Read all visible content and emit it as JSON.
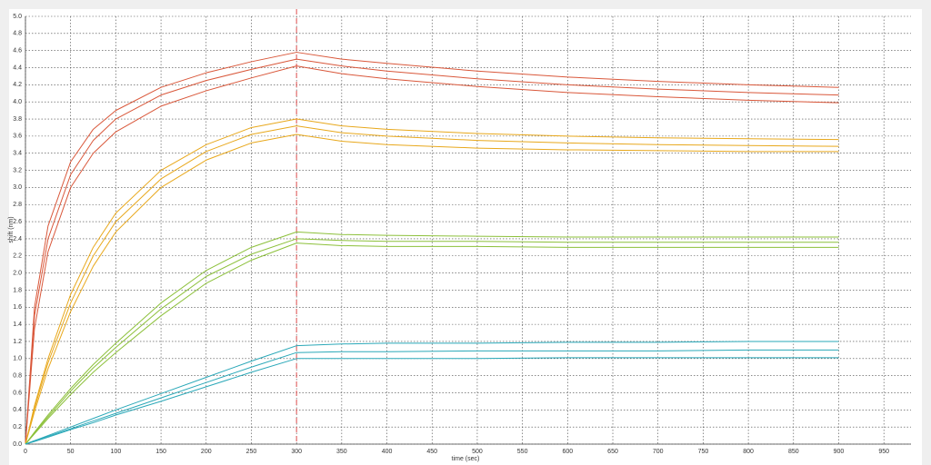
{
  "chart_data": {
    "type": "line",
    "x_label": "time (sec)",
    "y_label": "shift (nm)",
    "x": [
      0,
      10,
      25,
      50,
      75,
      100,
      150,
      200,
      250,
      300,
      350,
      400,
      500,
      600,
      700,
      800,
      900
    ],
    "series": [
      {
        "color": "#d9573a",
        "values": [
          0,
          1.6,
          2.55,
          3.3,
          3.68,
          3.9,
          4.17,
          4.34,
          4.47,
          4.58,
          4.5,
          4.45,
          4.36,
          4.29,
          4.24,
          4.2,
          4.17
        ]
      },
      {
        "color": "#d9573a",
        "values": [
          0,
          1.5,
          2.4,
          3.15,
          3.55,
          3.8,
          4.08,
          4.25,
          4.38,
          4.5,
          4.42,
          4.36,
          4.27,
          4.2,
          4.15,
          4.11,
          4.08
        ]
      },
      {
        "color": "#d9573a",
        "values": [
          0,
          1.35,
          2.25,
          3.0,
          3.4,
          3.65,
          3.95,
          4.13,
          4.28,
          4.42,
          4.33,
          4.27,
          4.18,
          4.11,
          4.06,
          4.02,
          3.99
        ]
      },
      {
        "color": "#e8a81c",
        "values": [
          0,
          0.45,
          1.0,
          1.75,
          2.3,
          2.7,
          3.2,
          3.5,
          3.7,
          3.8,
          3.72,
          3.68,
          3.63,
          3.6,
          3.58,
          3.57,
          3.56
        ]
      },
      {
        "color": "#e8a81c",
        "values": [
          0,
          0.42,
          0.95,
          1.65,
          2.2,
          2.6,
          3.1,
          3.42,
          3.62,
          3.72,
          3.64,
          3.6,
          3.55,
          3.52,
          3.5,
          3.49,
          3.48
        ]
      },
      {
        "color": "#e8a81c",
        "values": [
          0,
          0.38,
          0.88,
          1.55,
          2.08,
          2.48,
          3.0,
          3.32,
          3.52,
          3.62,
          3.54,
          3.5,
          3.46,
          3.44,
          3.43,
          3.42,
          3.42
        ]
      },
      {
        "color": "#8cc03a",
        "values": [
          0,
          0.14,
          0.34,
          0.65,
          0.93,
          1.18,
          1.65,
          2.03,
          2.3,
          2.48,
          2.45,
          2.44,
          2.43,
          2.42,
          2.42,
          2.42,
          2.42
        ]
      },
      {
        "color": "#8cc03a",
        "values": [
          0,
          0.13,
          0.32,
          0.62,
          0.89,
          1.13,
          1.58,
          1.96,
          2.22,
          2.4,
          2.38,
          2.37,
          2.37,
          2.36,
          2.36,
          2.36,
          2.36
        ]
      },
      {
        "color": "#8cc03a",
        "values": [
          0,
          0.12,
          0.3,
          0.58,
          0.84,
          1.07,
          1.5,
          1.88,
          2.15,
          2.35,
          2.32,
          2.31,
          2.31,
          2.3,
          2.3,
          2.3,
          2.3
        ]
      },
      {
        "color": "#2aa8b8",
        "values": [
          0,
          0.04,
          0.1,
          0.2,
          0.3,
          0.4,
          0.59,
          0.78,
          0.97,
          1.15,
          1.17,
          1.18,
          1.18,
          1.19,
          1.19,
          1.2,
          1.2
        ]
      },
      {
        "color": "#2aa8b8",
        "values": [
          0,
          0.04,
          0.09,
          0.18,
          0.27,
          0.36,
          0.54,
          0.72,
          0.9,
          1.07,
          1.08,
          1.08,
          1.09,
          1.09,
          1.09,
          1.1,
          1.1
        ]
      },
      {
        "color": "#2aa8b8",
        "values": [
          0,
          0.03,
          0.08,
          0.17,
          0.25,
          0.34,
          0.5,
          0.67,
          0.84,
          1.0,
          1.0,
          1.0,
          1.0,
          1.01,
          1.01,
          1.01,
          1.01
        ]
      }
    ],
    "xlim": [
      0,
      980
    ],
    "ylim": [
      0,
      5
    ],
    "xticks": [
      0,
      50,
      100,
      150,
      200,
      250,
      300,
      350,
      400,
      450,
      500,
      550,
      600,
      650,
      700,
      750,
      800,
      850,
      900,
      950
    ],
    "yticks": [
      {
        "value": 0,
        "label": "0.0"
      },
      0.2,
      0.4,
      0.6,
      0.8,
      {
        "value": 1,
        "label": "1.0"
      },
      1.2,
      1.4,
      1.6,
      1.8,
      {
        "value": 2,
        "label": "2.0"
      },
      2.2,
      2.4,
      2.6,
      2.8,
      {
        "value": 3,
        "label": "3.0"
      },
      3.2,
      3.4,
      3.6,
      3.8,
      {
        "value": 4,
        "label": "4.0"
      },
      4.2,
      4.4,
      4.6,
      4.8,
      {
        "value": 5,
        "label": "5.0"
      }
    ],
    "grid": true,
    "vline": {
      "x": 300,
      "color": "#e05050"
    }
  }
}
